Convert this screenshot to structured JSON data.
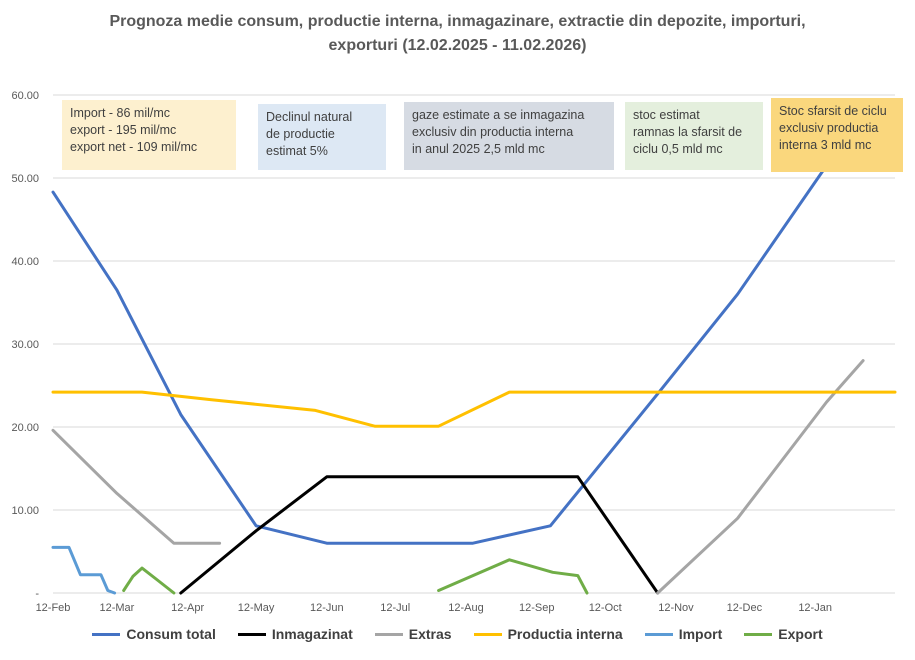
{
  "title_line1": "Prognoza medie consum, productie interna, inmagazinare, extractie din depozite, importuri,",
  "title_line2": "exporturi  (12.02.2025 - 11.02.2026)",
  "notes": {
    "import": [
      "Import - 86 mil/mc",
      "export - 195  mil/mc",
      "export net - 109  mil/mc"
    ],
    "decline": [
      "Declinul natural",
      "de productie",
      "estimat 5%"
    ],
    "storage_domestic": [
      "gaze estimate a se  inmagazina",
      "exclusiv din productia interna",
      "in anul 2025  2,5 mld mc"
    ],
    "stock_end": [
      "stoc estimat",
      "ramnas la sfarsit de",
      "ciclu 0,5  mld mc"
    ],
    "stock_cycle": [
      "Stoc sfarsit de ciclu",
      "exclusiv productia",
      "interna 3 mld mc"
    ]
  },
  "note_colors": {
    "import": "#fdf0cf",
    "decline": "#dde8f4",
    "storage_domestic": "#d6dbe3",
    "stock_end": "#e4efdd",
    "stock_cycle": "#fad77d"
  },
  "chart_data": {
    "type": "line",
    "title": "Prognoza medie consum, productie interna, inmagazinare, extractie din depozite, importuri, exporturi  (12.02.2025 - 11.02.2026)",
    "x_tick_labels": [
      "12-Feb",
      "12-Mar",
      "12-Apr",
      "12-May",
      "12-Jun",
      "12-Jul",
      "12-Aug",
      "12-Sep",
      "12-Oct",
      "12-Nov",
      "12-Dec",
      "12-Jan"
    ],
    "y_tick_labels": [
      "-",
      "10.00",
      "20.00",
      "30.00",
      "40.00",
      "50.00",
      "60.00"
    ],
    "ylim": [
      0,
      60
    ],
    "grid": "horizontal",
    "legend_position": "bottom",
    "x_unit": "day offset from 12-Feb-2025",
    "series": [
      {
        "name": "Consum total",
        "color": "#4472c4",
        "points": [
          [
            0,
            48.3
          ],
          [
            28,
            36.5
          ],
          [
            56,
            21.5
          ],
          [
            89,
            8.1
          ],
          [
            120,
            6.0
          ],
          [
            148,
            6.0
          ],
          [
            184,
            6.0
          ],
          [
            218,
            8.1
          ],
          [
            265,
            24.0
          ],
          [
            300,
            36.0
          ],
          [
            339,
            51.5
          ]
        ]
      },
      {
        "name": "Inmagazinat",
        "color": "#000000",
        "points": [
          [
            56,
            0
          ],
          [
            89,
            7.5
          ],
          [
            120,
            14.0
          ],
          [
            149,
            14.0
          ],
          [
            230,
            14.0
          ],
          [
            265,
            0
          ]
        ]
      },
      {
        "name": "Extras",
        "color": "#a5a5a5",
        "points": [
          [
            0,
            19.6
          ],
          [
            28,
            12.0
          ],
          [
            53,
            6.0
          ],
          [
            73,
            6.0
          ]
        ]
      },
      {
        "name": "Extras",
        "color": "#a5a5a5",
        "points": [
          [
            265,
            0
          ],
          [
            300,
            9.0
          ],
          [
            339,
            23.0
          ],
          [
            355,
            28.0
          ]
        ]
      },
      {
        "name": "Productia interna",
        "color": "#ffc000",
        "points": [
          [
            0,
            24.2
          ],
          [
            39,
            24.2
          ],
          [
            69,
            23.3
          ],
          [
            115,
            22.0
          ],
          [
            141,
            20.1
          ],
          [
            169,
            20.1
          ],
          [
            200,
            24.2
          ],
          [
            369,
            24.2
          ]
        ]
      },
      {
        "name": "Import",
        "color": "#5b9bd5",
        "points": [
          [
            0,
            5.5
          ],
          [
            7,
            5.5
          ],
          [
            12,
            2.2
          ],
          [
            21,
            2.2
          ],
          [
            24,
            0.3
          ],
          [
            27,
            0
          ]
        ]
      },
      {
        "name": "Export",
        "color": "#70ad47",
        "points": [
          [
            31,
            0.3
          ],
          [
            35,
            2.0
          ],
          [
            39,
            3.0
          ],
          [
            46,
            1.5
          ],
          [
            53,
            0
          ]
        ]
      },
      {
        "name": "Export",
        "color": "#70ad47",
        "points": [
          [
            169,
            0.3
          ],
          [
            200,
            4.0
          ],
          [
            219,
            2.5
          ],
          [
            230,
            2.1
          ],
          [
            234,
            0
          ]
        ]
      }
    ],
    "legend": [
      {
        "name": "Consum total",
        "color": "#4472c4"
      },
      {
        "name": "Inmagazinat",
        "color": "#000000"
      },
      {
        "name": "Extras",
        "color": "#a5a5a5"
      },
      {
        "name": "Productia interna",
        "color": "#ffc000"
      },
      {
        "name": "Import",
        "color": "#5b9bd5"
      },
      {
        "name": "Export",
        "color": "#70ad47"
      }
    ]
  }
}
